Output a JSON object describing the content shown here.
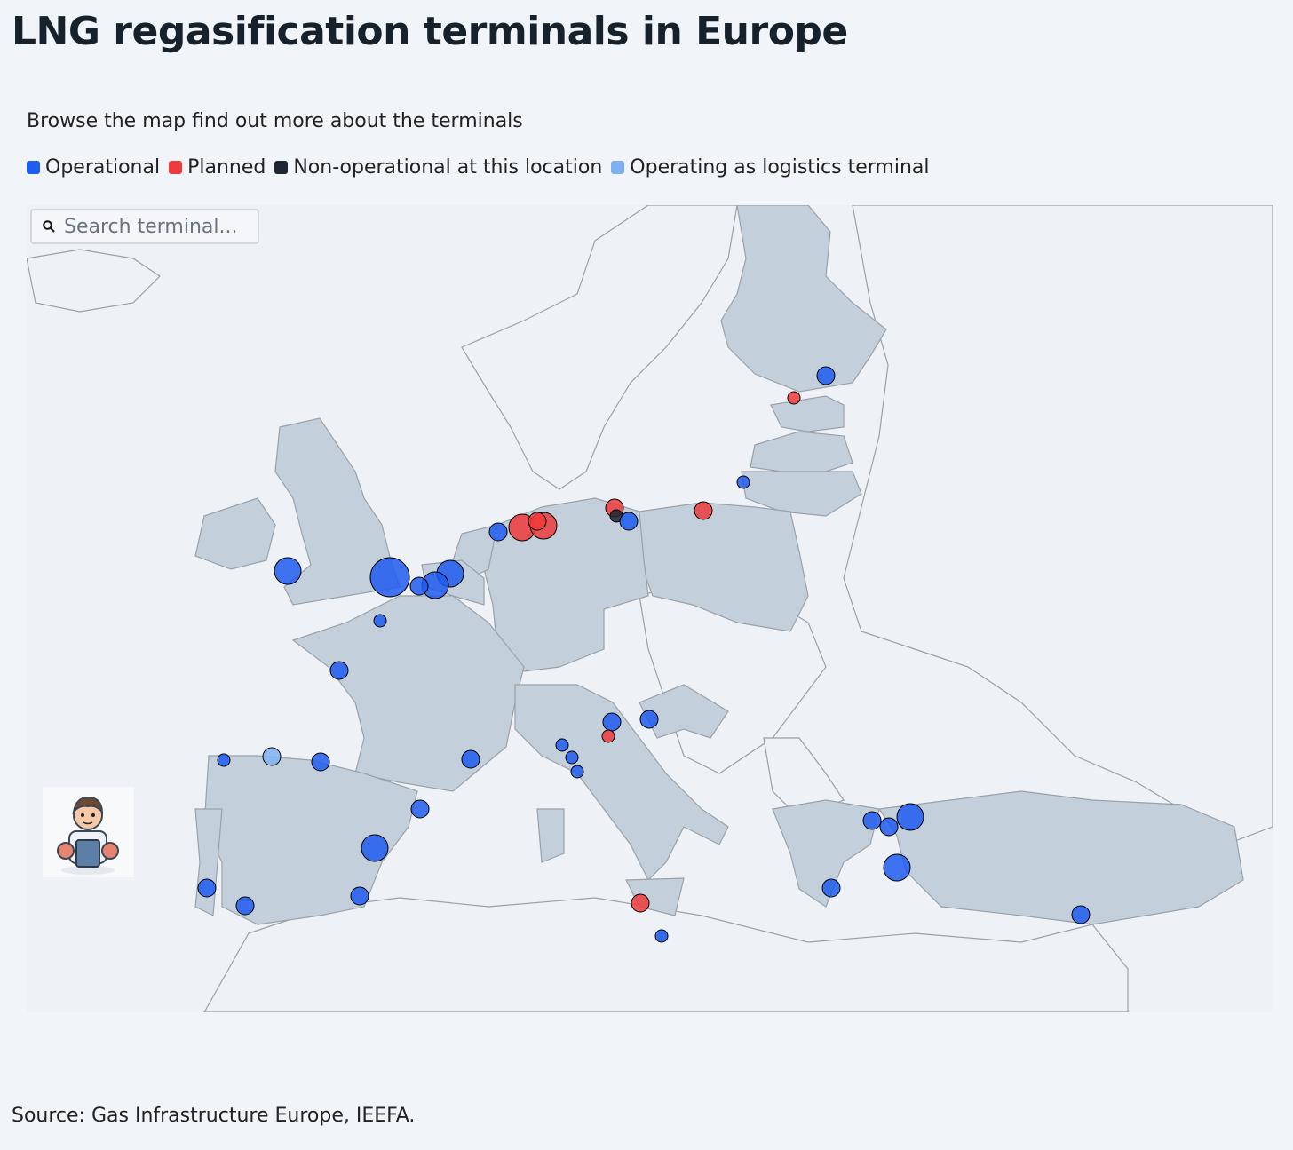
{
  "title": "LNG regasification terminals in Europe",
  "subtitle": "Browse the map find out more about the terminals",
  "legend": [
    {
      "label": "Operational",
      "color": "#1f5cf0"
    },
    {
      "label": "Planned",
      "color": "#ef3b3b"
    },
    {
      "label": "Non-operational at this location",
      "color": "#1c2733"
    },
    {
      "label": "Operating as logistics terminal",
      "color": "#7fb1f2"
    }
  ],
  "search": {
    "placeholder": "Search terminal...",
    "icon": "search-icon"
  },
  "mascot": {
    "icon": "mascot-illustration"
  },
  "source": "Source: Gas Infrastructure Europe, IEEFA.",
  "colors": {
    "land_highlight": "#c3d0db",
    "land_other": "#eef1f5",
    "border": "#9aa1a8",
    "marker_stroke": "#000000"
  },
  "terminals": [
    {
      "status": "operational",
      "size": "md",
      "country": "Finland"
    },
    {
      "status": "planned",
      "size": "sm",
      "country": "Estonia"
    },
    {
      "status": "operational",
      "size": "sm",
      "country": "Lithuania"
    },
    {
      "status": "planned",
      "size": "md",
      "country": "Poland"
    },
    {
      "status": "planned",
      "size": "md",
      "country": "Germany"
    },
    {
      "status": "non-operational",
      "size": "sm",
      "country": "Germany"
    },
    {
      "status": "operational",
      "size": "md",
      "country": "Poland"
    },
    {
      "status": "planned",
      "size": "lg",
      "country": "Germany"
    },
    {
      "status": "planned",
      "size": "lg",
      "country": "Germany"
    },
    {
      "status": "planned",
      "size": "md",
      "country": "Germany"
    },
    {
      "status": "operational",
      "size": "md",
      "country": "Netherlands"
    },
    {
      "status": "operational",
      "size": "lg",
      "country": "Belgium"
    },
    {
      "status": "operational",
      "size": "lg",
      "country": "France"
    },
    {
      "status": "operational",
      "size": "md",
      "country": "France"
    },
    {
      "status": "operational",
      "size": "xl",
      "country": "United Kingdom"
    },
    {
      "status": "operational",
      "size": "lg",
      "country": "United Kingdom"
    },
    {
      "status": "operational",
      "size": "sm",
      "country": "France"
    },
    {
      "status": "operational",
      "size": "md",
      "country": "France"
    },
    {
      "status": "operational",
      "size": "md",
      "country": "France"
    },
    {
      "status": "operational",
      "size": "sm",
      "country": "Spain"
    },
    {
      "status": "logistics",
      "size": "md",
      "country": "Spain"
    },
    {
      "status": "operational",
      "size": "md",
      "country": "Spain"
    },
    {
      "status": "operational",
      "size": "lg",
      "country": "Spain"
    },
    {
      "status": "operational",
      "size": "md",
      "country": "Spain"
    },
    {
      "status": "operational",
      "size": "md",
      "country": "Spain"
    },
    {
      "status": "operational",
      "size": "md",
      "country": "Portugal"
    },
    {
      "status": "operational",
      "size": "md",
      "country": "Spain"
    },
    {
      "status": "operational",
      "size": "md",
      "country": "Italy"
    },
    {
      "status": "planned",
      "size": "sm",
      "country": "Italy"
    },
    {
      "status": "operational",
      "size": "md",
      "country": "Croatia"
    },
    {
      "status": "operational",
      "size": "sm",
      "country": "Italy"
    },
    {
      "status": "operational",
      "size": "sm",
      "country": "Italy"
    },
    {
      "status": "operational",
      "size": "sm",
      "country": "Italy"
    },
    {
      "status": "planned",
      "size": "md",
      "country": "Italy"
    },
    {
      "status": "operational",
      "size": "sm",
      "country": "Malta"
    },
    {
      "status": "operational",
      "size": "md",
      "country": "Greece"
    },
    {
      "status": "operational",
      "size": "md",
      "country": "Greece"
    },
    {
      "status": "operational",
      "size": "lg",
      "country": "Turkey"
    },
    {
      "status": "operational",
      "size": "lg",
      "country": "Turkey"
    },
    {
      "status": "operational",
      "size": "md",
      "country": "Greece"
    },
    {
      "status": "operational",
      "size": "md",
      "country": "Turkey"
    }
  ]
}
